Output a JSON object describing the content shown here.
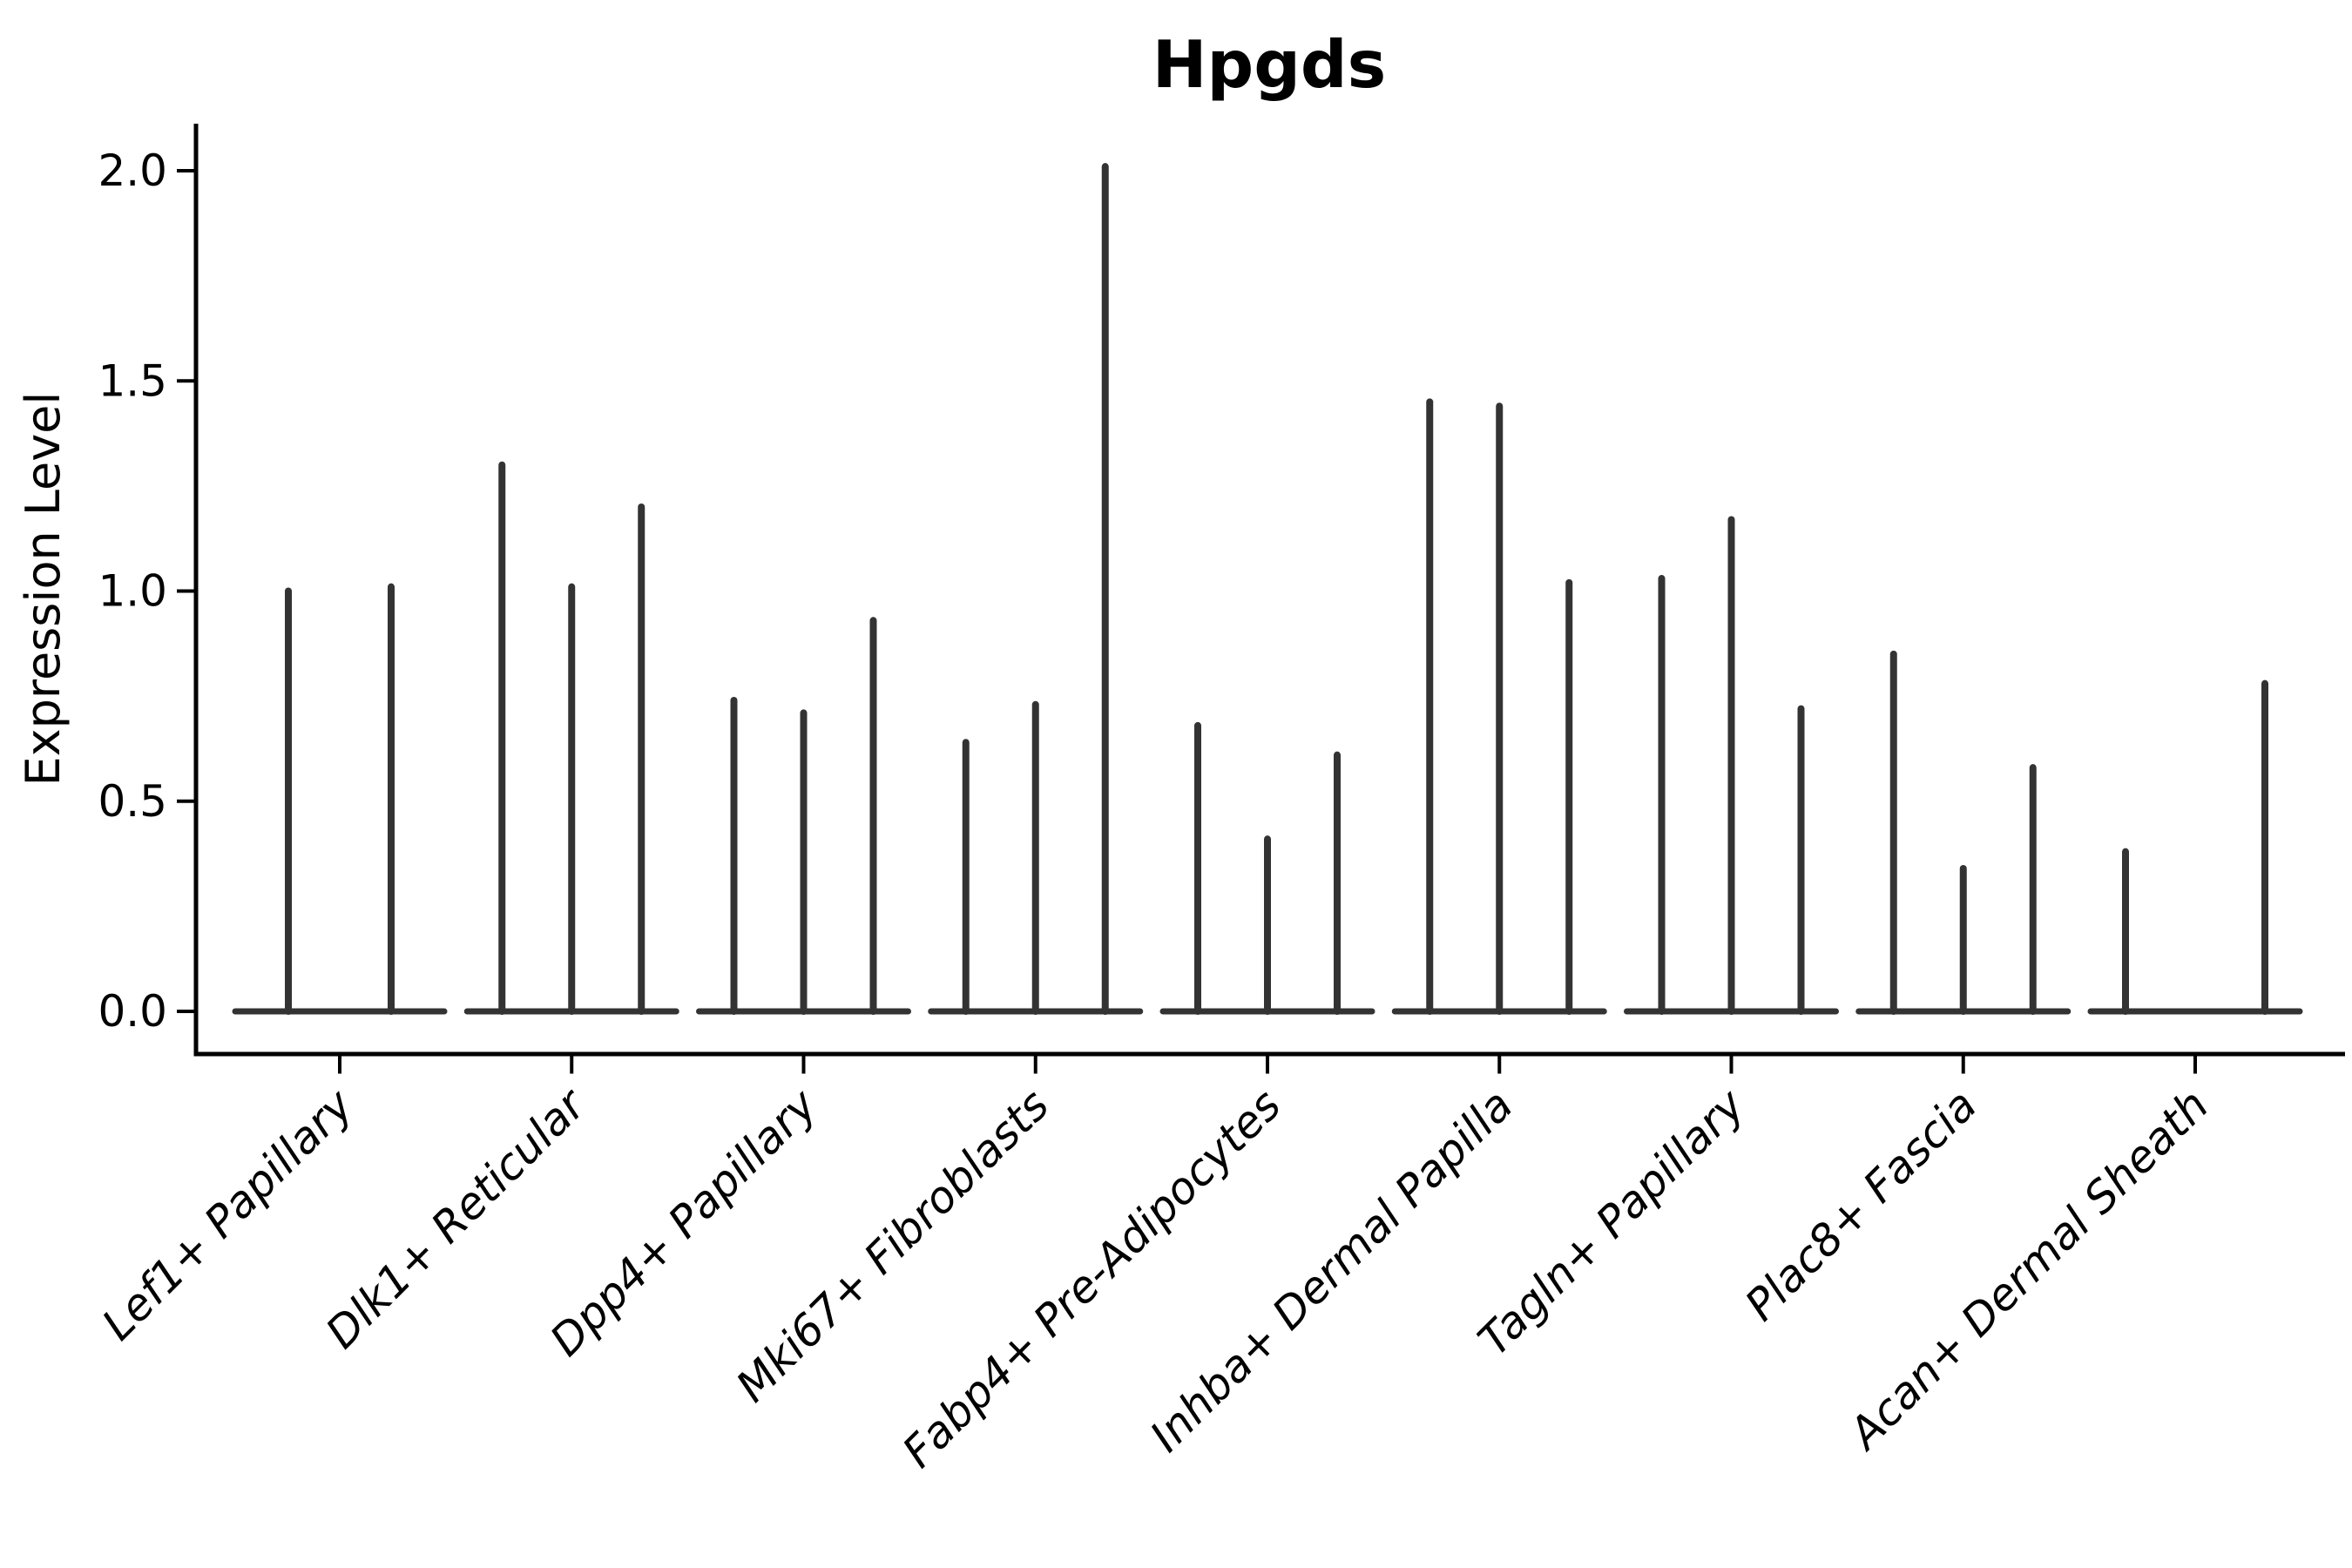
{
  "figure": {
    "title": "Hpgds",
    "ylabel": "Expression Level"
  },
  "chart_data": {
    "type": "violin",
    "title": "Hpgds",
    "xlabel": "",
    "ylabel": "Expression Level",
    "ylim": [
      0,
      2.11
    ],
    "yticks": [
      "0.0",
      "0.5",
      "1.0",
      "1.5",
      "2.0"
    ],
    "grid": false,
    "legend": "none",
    "description": "Violin plot of Hpgds expression per fibroblast cluster; each cluster shows 2-3 very thin spike-like violins (one per sub-violin) rising from a flat base at expression 0. Values below are the maximum expression height of each spike.",
    "categories": [
      "Lef1+ Papillary",
      "Dlk1+ Reticular",
      "Dpp4+ Papillary",
      "Mki67+ Fibroblasts",
      "Fabp4+ Pre-Adipocytes",
      "Inhba+ Dermal Papilla",
      "Tagln+ Papillary",
      "Plac8+ Fascia",
      "Acan+ Dermal Sheath"
    ],
    "groups": [
      {
        "category": "Lef1+ Papillary",
        "violin_max_values": [
          1.0,
          1.01
        ]
      },
      {
        "category": "Dlk1+ Reticular",
        "violin_max_values": [
          1.3,
          1.01,
          1.2
        ]
      },
      {
        "category": "Dpp4+ Papillary",
        "violin_max_values": [
          0.74,
          0.71,
          0.93
        ]
      },
      {
        "category": "Mki67+ Fibroblasts",
        "violin_max_values": [
          0.64,
          0.73,
          2.01
        ]
      },
      {
        "category": "Fabp4+ Pre-Adipocytes",
        "violin_max_values": [
          0.68,
          0.41,
          0.61
        ]
      },
      {
        "category": "Inhba+ Dermal Papilla",
        "violin_max_values": [
          1.45,
          1.44,
          1.02
        ]
      },
      {
        "category": "Tagln+ Papillary",
        "violin_max_values": [
          1.03,
          1.17,
          0.72
        ]
      },
      {
        "category": "Plac8+ Fascia",
        "violin_max_values": [
          0.85,
          0.34,
          0.58
        ]
      },
      {
        "category": "Acan+ Dermal Sheath",
        "violin_max_values": [
          0.38,
          0,
          0.78
        ]
      }
    ],
    "colors": {
      "violin": "#333333",
      "axis": "#000000",
      "text": "#000000",
      "background": "#ffffff"
    }
  }
}
